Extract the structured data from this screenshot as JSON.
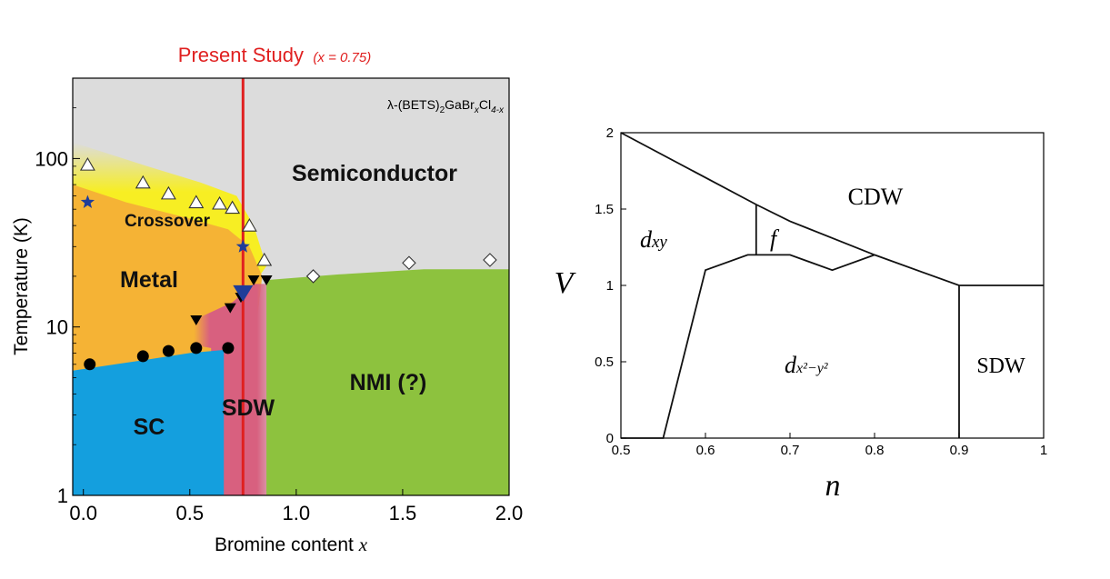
{
  "chart_data": [
    {
      "type": "area",
      "study_label": "Present Study",
      "study_param": "(x = 0.75)",
      "study_x": 0.75,
      "compound": {
        "prefix": "λ-(BETS)",
        "s1": "2",
        "mid": "GaBr",
        "s2": "x",
        "post": "Cl",
        "s3": "4-x"
      },
      "xlabel": "Bromine content x",
      "ylabel": "Temperature (K)",
      "xlim": [
        -0.05,
        2.0
      ],
      "ylim": [
        1,
        300
      ],
      "yscale": "log",
      "x_ticks": [
        0.0,
        0.5,
        1.0,
        1.5,
        2.0
      ],
      "x_tick_labels": [
        "0.0",
        "0.5",
        "1.0",
        "1.5",
        "2.0"
      ],
      "y_ticks": [
        1,
        10,
        100
      ],
      "y_tick_labels": [
        "1",
        "10",
        "100"
      ],
      "region_labels": {
        "semiconductor": "Semiconductor",
        "crossover": "Crossover",
        "metal": "Metal",
        "sc": "SC",
        "sdw": "SDW",
        "nmi": "NMI (?)"
      },
      "colors": {
        "semiconductor": "#dcdcdc",
        "crossover": "#f7ee23",
        "metal": "#f5b335",
        "sc": "#149fde",
        "sdw": "#d8607f",
        "nmi": "#8dc23e",
        "study_line": "#e02020",
        "star": "#1f3d99"
      },
      "series": [
        {
          "marker": "open-triangle",
          "points": [
            [
              0.02,
              92
            ],
            [
              0.28,
              72
            ],
            [
              0.4,
              62
            ],
            [
              0.53,
              55
            ],
            [
              0.64,
              54
            ],
            [
              0.7,
              51
            ],
            [
              0.78,
              40
            ],
            [
              0.85,
              25
            ]
          ]
        },
        {
          "marker": "star",
          "points": [
            [
              0.02,
              55
            ],
            [
              0.75,
              30
            ],
            [
              0.75,
              16
            ]
          ]
        },
        {
          "marker": "filled-circle",
          "points": [
            [
              0.03,
              6
            ],
            [
              0.28,
              6.7
            ],
            [
              0.4,
              7.2
            ],
            [
              0.53,
              7.5
            ],
            [
              0.68,
              7.5
            ]
          ]
        },
        {
          "marker": "filled-triangle-down",
          "points": [
            [
              0.53,
              11
            ],
            [
              0.69,
              13
            ],
            [
              0.74,
              15
            ],
            [
              0.8,
              19
            ],
            [
              0.86,
              19
            ]
          ]
        },
        {
          "marker": "open-diamond",
          "points": [
            [
              1.08,
              20
            ],
            [
              1.53,
              24
            ],
            [
              1.91,
              25
            ]
          ]
        }
      ]
    },
    {
      "type": "line",
      "xlabel": "n",
      "ylabel": "V",
      "xlim": [
        0.5,
        1.0
      ],
      "ylim": [
        0,
        2
      ],
      "x_ticks": [
        0.5,
        0.6,
        0.7,
        0.8,
        0.9,
        1.0
      ],
      "x_tick_labels": [
        "0.5",
        "0.6",
        "0.7",
        "0.8",
        "0.9",
        "1"
      ],
      "y_ticks": [
        0,
        0.5,
        1.0,
        1.5,
        2.0
      ],
      "y_tick_labels": [
        "0",
        "0.5",
        "1",
        "1.5",
        "2"
      ],
      "region_labels": {
        "cdw": "CDW",
        "dxy_base": "d",
        "dxy_sub": "xy",
        "f": "f",
        "dx2_base": "d",
        "dx2_sub": "x²−y²",
        "sdw": "SDW"
      },
      "boundaries": [
        {
          "points": [
            [
              0.5,
              2.0
            ],
            [
              0.66,
              1.53
            ],
            [
              0.7,
              1.42
            ],
            [
              0.8,
              1.2
            ],
            [
              0.9,
              1.0
            ],
            [
              1.0,
              1.0
            ]
          ]
        },
        {
          "points": [
            [
              0.5,
              0.0
            ],
            [
              0.55,
              0.0
            ],
            [
              0.6,
              1.1
            ],
            [
              0.65,
              1.2
            ],
            [
              0.7,
              1.2
            ],
            [
              0.75,
              1.1
            ],
            [
              0.8,
              1.2
            ]
          ]
        },
        {
          "points": [
            [
              0.66,
              1.2
            ],
            [
              0.66,
              1.53
            ]
          ]
        },
        {
          "points": [
            [
              0.9,
              0.0
            ],
            [
              0.9,
              1.0
            ]
          ]
        }
      ]
    }
  ]
}
